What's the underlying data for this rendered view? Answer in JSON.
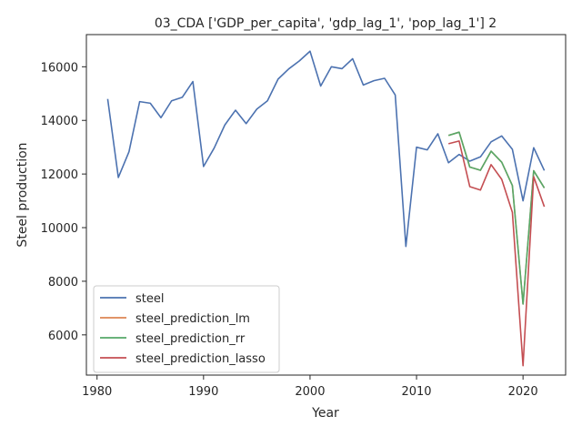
{
  "chart_data": {
    "type": "line",
    "title": "03_CDA ['GDP_per_capita', 'gdp_lag_1', 'pop_lag_1'] 2",
    "xlabel": "Year",
    "ylabel": "Steel production",
    "xlim": [
      1979,
      2024
    ],
    "ylim": [
      4500,
      17200
    ],
    "xticks": [
      1980,
      1990,
      2000,
      2010,
      2020
    ],
    "yticks": [
      6000,
      8000,
      10000,
      12000,
      14000,
      16000
    ],
    "grid": false,
    "legend_position": "lower-left",
    "series": [
      {
        "name": "steel",
        "color": "#4c72b0",
        "x": [
          1981,
          1982,
          1983,
          1984,
          1985,
          1986,
          1987,
          1988,
          1989,
          1990,
          1991,
          1992,
          1993,
          1994,
          1995,
          1996,
          1997,
          1998,
          1999,
          2000,
          2001,
          2002,
          2003,
          2004,
          2005,
          2006,
          2007,
          2008,
          2009,
          2010,
          2011,
          2012,
          2013,
          2014,
          2015,
          2016,
          2017,
          2018,
          2019,
          2020,
          2021,
          2022
        ],
        "values": [
          14800,
          11870,
          12830,
          14700,
          14640,
          14100,
          14730,
          14860,
          15450,
          12280,
          12970,
          13830,
          14380,
          13880,
          14420,
          14730,
          15540,
          15920,
          16220,
          16580,
          15280,
          16000,
          15930,
          16300,
          15320,
          15480,
          15570,
          14950,
          9300,
          13000,
          12900,
          13500,
          12420,
          12730,
          12480,
          12640,
          13200,
          13420,
          12920,
          11000,
          12980,
          12130
        ]
      },
      {
        "name": "steel_prediction_lm",
        "color": "#dd8452",
        "x": [
          2013,
          2014,
          2015,
          2016,
          2017,
          2018,
          2019,
          2020,
          2021,
          2022
        ],
        "values": [
          13440,
          13560,
          12260,
          12140,
          12850,
          12440,
          11570,
          7150,
          12120,
          11480
        ]
      },
      {
        "name": "steel_prediction_rr",
        "color": "#55a868",
        "x": [
          2013,
          2014,
          2015,
          2016,
          2017,
          2018,
          2019,
          2020,
          2021,
          2022
        ],
        "values": [
          13440,
          13560,
          12260,
          12140,
          12850,
          12440,
          11570,
          7150,
          12120,
          11480
        ]
      },
      {
        "name": "steel_prediction_lasso",
        "color": "#c44e52",
        "x": [
          2013,
          2014,
          2015,
          2016,
          2017,
          2018,
          2019,
          2020,
          2021,
          2022
        ],
        "values": [
          13130,
          13230,
          11530,
          11400,
          12350,
          11800,
          10570,
          4850,
          11900,
          10780
        ]
      }
    ]
  }
}
